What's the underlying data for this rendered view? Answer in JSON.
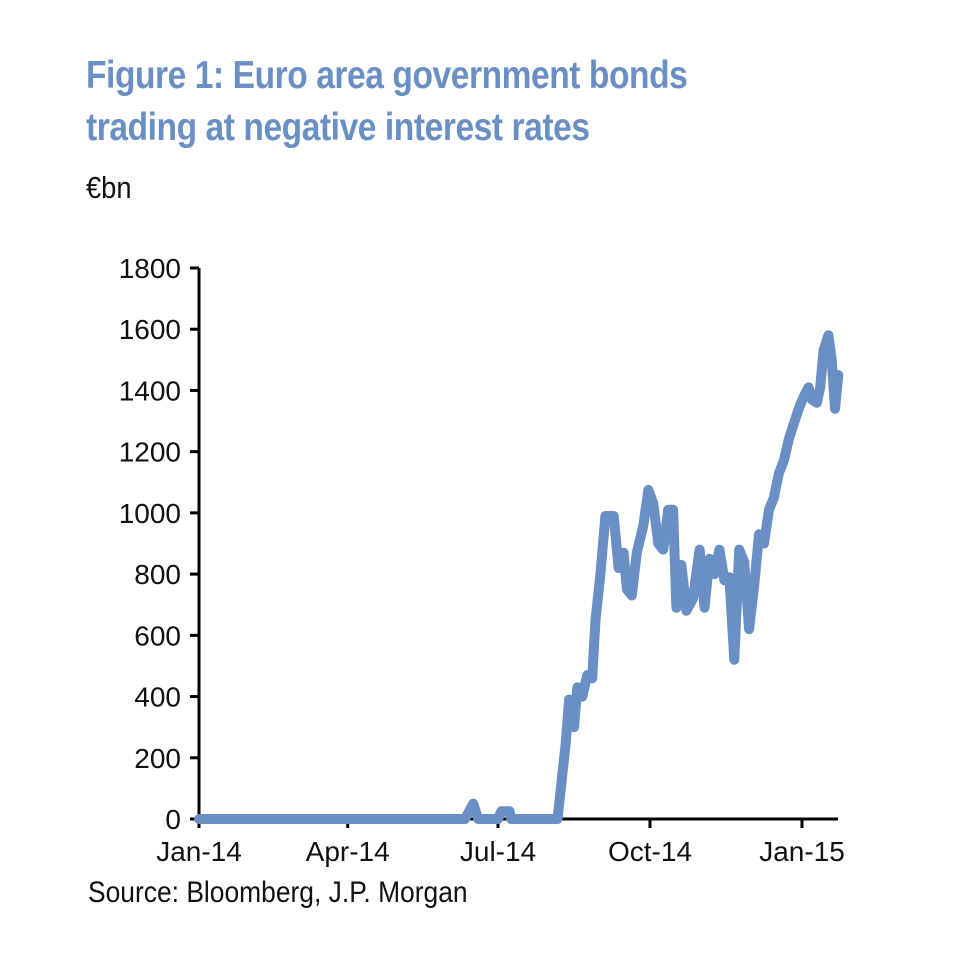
{
  "title": "Figure 1: Euro area government bonds trading at negative interest rates",
  "title_lines": [
    "Figure 1: Euro area government bonds",
    "trading at negative interest rates"
  ],
  "unit_label": "€bn",
  "source": "Source: Bloomberg, J.P. Morgan",
  "colors": {
    "title": "#6a8fc4",
    "series": "#6a8fc4",
    "axis": "#000000",
    "text": "#111111"
  },
  "chart_data": {
    "type": "line",
    "title": "Figure 1: Euro area government bonds trading at negative interest rates",
    "xlabel": "",
    "ylabel": "€bn",
    "xlim": [
      "2014-01-01",
      "2015-01-25"
    ],
    "ylim": [
      0,
      1800
    ],
    "yticks": [
      0,
      200,
      400,
      600,
      800,
      1000,
      1200,
      1400,
      1600,
      1800
    ],
    "xticks": [
      {
        "date": "2014-01-01",
        "label": "Jan-14"
      },
      {
        "date": "2014-04-01",
        "label": "Apr-14"
      },
      {
        "date": "2014-07-01",
        "label": "Jul-14"
      },
      {
        "date": "2014-10-01",
        "label": "Oct-14"
      },
      {
        "date": "2015-01-01",
        "label": "Jan-15"
      }
    ],
    "grid": false,
    "legend": "none",
    "series": [
      {
        "name": "Euro area government bonds trading at negative interest rates",
        "points": [
          [
            "2014-01-01",
            0
          ],
          [
            "2014-06-11",
            0
          ],
          [
            "2014-06-14",
            30
          ],
          [
            "2014-06-16",
            50
          ],
          [
            "2014-06-19",
            0
          ],
          [
            "2014-07-01",
            0
          ],
          [
            "2014-07-03",
            25
          ],
          [
            "2014-07-08",
            25
          ],
          [
            "2014-07-09",
            0
          ],
          [
            "2014-08-06",
            0
          ],
          [
            "2014-08-09",
            150
          ],
          [
            "2014-08-11",
            250
          ],
          [
            "2014-08-13",
            390
          ],
          [
            "2014-08-16",
            300
          ],
          [
            "2014-08-18",
            430
          ],
          [
            "2014-08-21",
            400
          ],
          [
            "2014-08-24",
            470
          ],
          [
            "2014-08-27",
            460
          ],
          [
            "2014-08-29",
            650
          ],
          [
            "2014-09-01",
            800
          ],
          [
            "2014-09-04",
            990
          ],
          [
            "2014-09-09",
            990
          ],
          [
            "2014-09-12",
            820
          ],
          [
            "2014-09-15",
            870
          ],
          [
            "2014-09-17",
            750
          ],
          [
            "2014-09-20",
            730
          ],
          [
            "2014-09-23",
            870
          ],
          [
            "2014-09-27",
            960
          ],
          [
            "2014-09-30",
            1075
          ],
          [
            "2014-10-03",
            1030
          ],
          [
            "2014-10-06",
            900
          ],
          [
            "2014-10-09",
            880
          ],
          [
            "2014-10-12",
            1010
          ],
          [
            "2014-10-15",
            1010
          ],
          [
            "2014-10-17",
            690
          ],
          [
            "2014-10-20",
            830
          ],
          [
            "2014-10-23",
            680
          ],
          [
            "2014-10-27",
            720
          ],
          [
            "2014-10-31",
            880
          ],
          [
            "2014-11-03",
            690
          ],
          [
            "2014-11-06",
            850
          ],
          [
            "2014-11-09",
            800
          ],
          [
            "2014-11-12",
            880
          ],
          [
            "2014-11-15",
            780
          ],
          [
            "2014-11-18",
            790
          ],
          [
            "2014-11-21",
            520
          ],
          [
            "2014-11-24",
            880
          ],
          [
            "2014-11-27",
            840
          ],
          [
            "2014-11-30",
            620
          ],
          [
            "2014-12-03",
            760
          ],
          [
            "2014-12-06",
            930
          ],
          [
            "2014-12-09",
            900
          ],
          [
            "2014-12-12",
            1010
          ],
          [
            "2014-12-15",
            1050
          ],
          [
            "2014-12-18",
            1130
          ],
          [
            "2014-12-21",
            1170
          ],
          [
            "2014-12-24",
            1240
          ],
          [
            "2014-12-27",
            1290
          ],
          [
            "2014-12-30",
            1340
          ],
          [
            "2015-01-02",
            1380
          ],
          [
            "2015-01-05",
            1410
          ],
          [
            "2015-01-07",
            1370
          ],
          [
            "2015-01-10",
            1360
          ],
          [
            "2015-01-12",
            1410
          ],
          [
            "2015-01-14",
            1530
          ],
          [
            "2015-01-17",
            1580
          ],
          [
            "2015-01-19",
            1500
          ],
          [
            "2015-01-21",
            1340
          ],
          [
            "2015-01-23",
            1450
          ]
        ]
      }
    ],
    "source": "Source: Bloomberg, J.P. Morgan"
  }
}
